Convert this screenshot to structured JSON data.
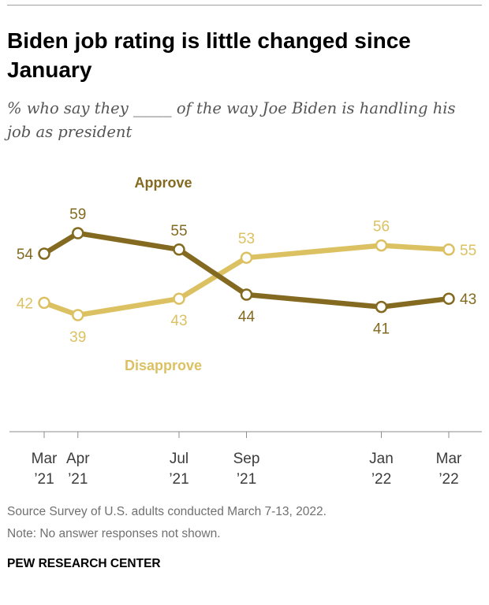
{
  "header": {
    "title": "Biden job rating is little changed since January",
    "subtitle": "% who say they _____ of the way Joe Biden is handling his job as president"
  },
  "footer": {
    "source": "Source Survey of U.S. adults conducted March 7-13, 2022.",
    "note": "Note: No answer responses not shown.",
    "brand": "PEW RESEARCH CENTER"
  },
  "colors": {
    "approve": "#836a20",
    "disapprove": "#dcc163",
    "axis": "#8c8c8c",
    "tick_label": "#3c3c3c"
  },
  "chart_data": {
    "type": "line",
    "title": "Biden job rating is little changed since January",
    "xlabel": "",
    "ylabel": "",
    "x": [
      {
        "month": "Mar",
        "year": "’21",
        "index": 0
      },
      {
        "month": "Apr",
        "year": "’21",
        "index": 1
      },
      {
        "month": "Jul",
        "year": "’21",
        "index": 4
      },
      {
        "month": "Sep",
        "year": "’21",
        "index": 6
      },
      {
        "month": "Jan",
        "year": "’22",
        "index": 10
      },
      {
        "month": "Mar",
        "year": "’22",
        "index": 12
      }
    ],
    "ylim": [
      30,
      65
    ],
    "grid": false,
    "legend": "inline labels",
    "series": [
      {
        "name": "Approve",
        "key": "approve",
        "values": [
          54,
          59,
          55,
          44,
          41,
          43
        ],
        "label_positions": [
          "left",
          "above",
          "above",
          "below",
          "below",
          "right"
        ]
      },
      {
        "name": "Disapprove",
        "key": "disapprove",
        "values": [
          42,
          39,
          43,
          53,
          56,
          55
        ],
        "label_positions": [
          "left",
          "below",
          "below",
          "above",
          "above",
          "right"
        ]
      }
    ]
  }
}
